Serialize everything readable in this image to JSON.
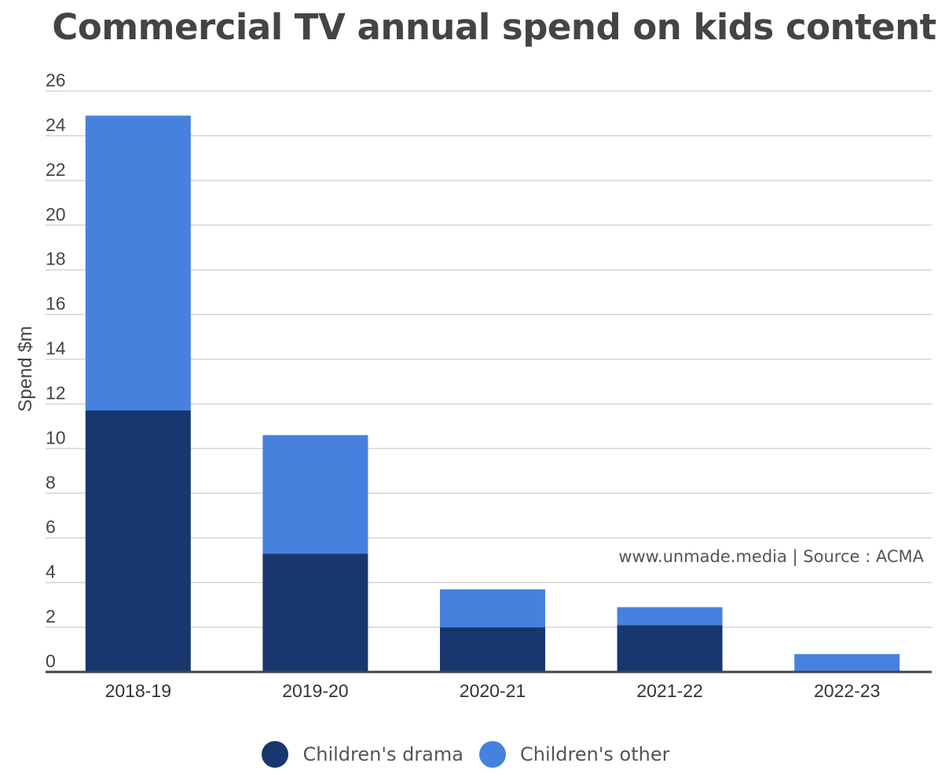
{
  "chart_data": {
    "type": "bar",
    "stacked": true,
    "title": "Commercial TV annual spend on kids content",
    "xlabel": "",
    "ylabel": "Spend $m",
    "ylim": [
      0,
      26
    ],
    "yticks": [
      0,
      2,
      4,
      6,
      8,
      10,
      12,
      14,
      16,
      18,
      20,
      22,
      24,
      26
    ],
    "grid": true,
    "legend_position": "bottom",
    "categories": [
      "2018-19",
      "2019-20",
      "2020-21",
      "2021-22",
      "2022-23"
    ],
    "series": [
      {
        "name": "Children's drama",
        "color": "#18376e",
        "values": [
          11.7,
          5.3,
          2.0,
          2.1,
          0
        ]
      },
      {
        "name": "Children's other",
        "color": "#4781de",
        "values": [
          13.2,
          5.3,
          1.7,
          0.8,
          0.8
        ]
      }
    ],
    "annotation": "www.unmade.media | Source : ACMA"
  }
}
